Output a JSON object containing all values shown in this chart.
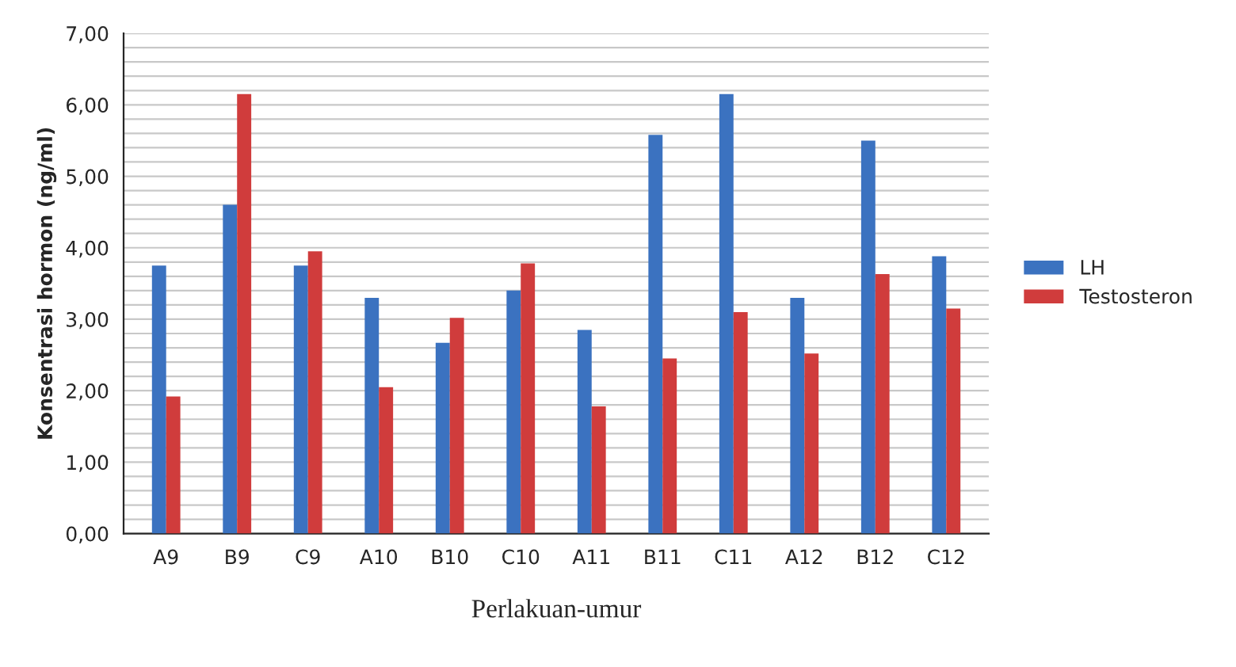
{
  "chart_data": {
    "type": "bar",
    "xlabel": "Perlakuan-umur",
    "ylabel": "Konsentrasi hormon (ng/ml)",
    "categories": [
      "A9",
      "B9",
      "C9",
      "A10",
      "B10",
      "C10",
      "A11",
      "B11",
      "C11",
      "A12",
      "B12",
      "C12"
    ],
    "series": [
      {
        "name": "LH",
        "color": "#3b72c0",
        "values": [
          3.75,
          4.6,
          3.75,
          3.3,
          2.67,
          3.4,
          2.85,
          5.58,
          6.15,
          3.3,
          5.5,
          3.88
        ]
      },
      {
        "name": "Testosteron",
        "color": "#d03c3c",
        "values": [
          1.92,
          6.15,
          3.95,
          2.05,
          3.02,
          3.78,
          1.78,
          2.45,
          3.1,
          2.52,
          3.63,
          3.15
        ]
      }
    ],
    "ylim": [
      0,
      7
    ],
    "yticks": [
      {
        "value": 0,
        "label": "0,00"
      },
      {
        "value": 0.2,
        "label": null
      },
      {
        "value": 0.4,
        "label": null
      },
      {
        "value": 0.6,
        "label": null
      },
      {
        "value": 0.8,
        "label": null
      },
      {
        "value": 1,
        "label": "1,00"
      },
      {
        "value": 1.2,
        "label": null
      },
      {
        "value": 1.4,
        "label": null
      },
      {
        "value": 1.6,
        "label": null
      },
      {
        "value": 1.8,
        "label": null
      },
      {
        "value": 2,
        "label": "2,00"
      },
      {
        "value": 2.2,
        "label": null
      },
      {
        "value": 2.4,
        "label": null
      },
      {
        "value": 2.6,
        "label": null
      },
      {
        "value": 2.8,
        "label": null
      },
      {
        "value": 3,
        "label": "3,00"
      },
      {
        "value": 3.2,
        "label": null
      },
      {
        "value": 3.4,
        "label": null
      },
      {
        "value": 3.6,
        "label": null
      },
      {
        "value": 3.8,
        "label": null
      },
      {
        "value": 4,
        "label": "4,00"
      },
      {
        "value": 4.2,
        "label": null
      },
      {
        "value": 4.4,
        "label": null
      },
      {
        "value": 4.6,
        "label": null
      },
      {
        "value": 4.8,
        "label": null
      },
      {
        "value": 5,
        "label": "5,00"
      },
      {
        "value": 5.2,
        "label": null
      },
      {
        "value": 5.4,
        "label": null
      },
      {
        "value": 5.6,
        "label": null
      },
      {
        "value": 5.8,
        "label": null
      },
      {
        "value": 6,
        "label": "6,00"
      },
      {
        "value": 6.2,
        "label": null
      },
      {
        "value": 6.4,
        "label": null
      },
      {
        "value": 6.6,
        "label": null
      },
      {
        "value": 6.8,
        "label": null
      },
      {
        "value": 7,
        "label": "7,00"
      }
    ],
    "grid": "y",
    "legend": "right"
  }
}
